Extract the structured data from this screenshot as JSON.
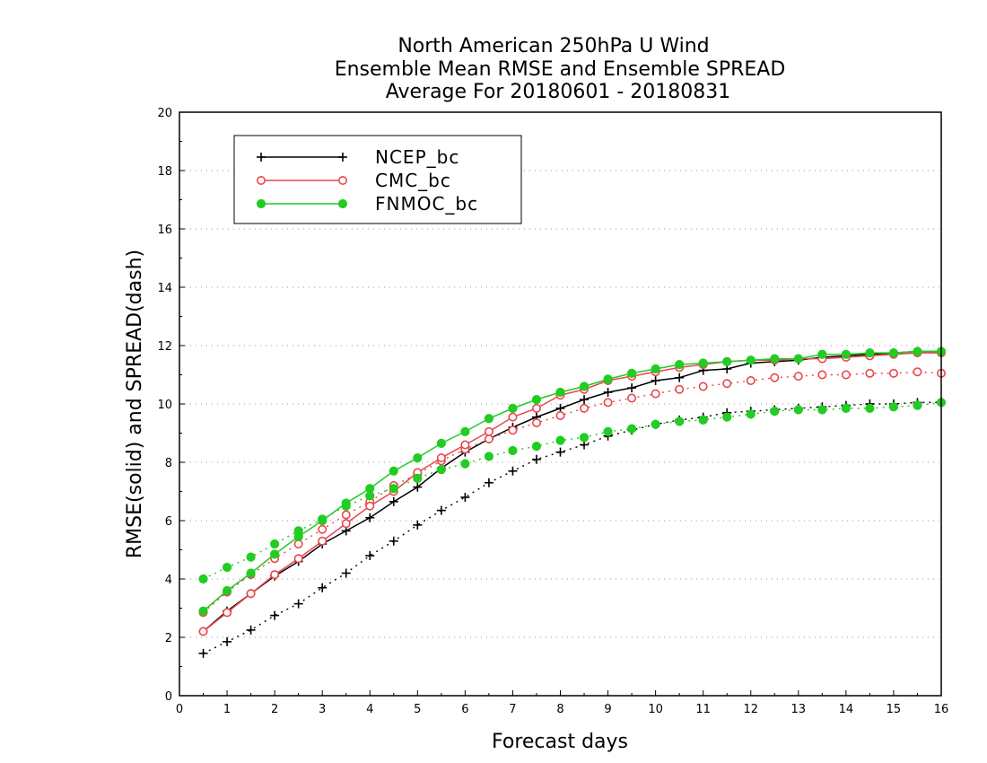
{
  "chart_data": {
    "type": "line",
    "title_lines": [
      "North American 250hPa U Wind",
      "Ensemble Mean RMSE and Ensemble SPREAD",
      "Average For 20180601 - 20180831"
    ],
    "xlabel": "Forecast days",
    "ylabel": "RMSE(solid) and SPREAD(dash)",
    "xlim": [
      0,
      16
    ],
    "ylim": [
      0,
      20
    ],
    "x_ticks": [
      "0",
      "1",
      "2",
      "3",
      "4",
      "5",
      "6",
      "7",
      "8",
      "9",
      "10",
      "11",
      "12",
      "13",
      "14",
      "15",
      "16"
    ],
    "y_ticks": [
      "0",
      "2",
      "4",
      "6",
      "8",
      "10",
      "12",
      "14",
      "16",
      "18",
      "20"
    ],
    "grid": "horizontal dotted",
    "legend_position": "top-left",
    "x": [
      0.5,
      1,
      1.5,
      2,
      2.5,
      3,
      3.5,
      4,
      4.5,
      5,
      5.5,
      6,
      6.5,
      7,
      7.5,
      8,
      8.5,
      9,
      9.5,
      10,
      10.5,
      11,
      11.5,
      12,
      12.5,
      13,
      13.5,
      14,
      14.5,
      15,
      15.5,
      16
    ],
    "series": [
      {
        "name": "NCEP_bc",
        "color": "#000000",
        "marker": "plus",
        "rmse": [
          2.2,
          2.9,
          3.5,
          4.1,
          4.6,
          5.2,
          5.65,
          6.1,
          6.65,
          7.15,
          7.8,
          8.35,
          8.8,
          9.2,
          9.55,
          9.85,
          10.15,
          10.4,
          10.55,
          10.8,
          10.9,
          11.15,
          11.2,
          11.4,
          11.45,
          11.5,
          11.6,
          11.65,
          11.7,
          11.75,
          11.8,
          11.8
        ],
        "spread": [
          1.45,
          1.85,
          2.25,
          2.75,
          3.15,
          3.7,
          4.2,
          4.8,
          5.3,
          5.85,
          6.35,
          6.8,
          7.3,
          7.7,
          8.1,
          8.35,
          8.6,
          8.9,
          9.1,
          9.3,
          9.45,
          9.55,
          9.7,
          9.75,
          9.8,
          9.85,
          9.9,
          9.95,
          10.0,
          10.0,
          10.05,
          10.05
        ]
      },
      {
        "name": "CMC_bc",
        "color": "#e8474c",
        "marker": "open-circle",
        "rmse": [
          2.2,
          2.85,
          3.5,
          4.15,
          4.7,
          5.3,
          5.9,
          6.5,
          7.0,
          7.65,
          8.15,
          8.6,
          9.05,
          9.55,
          9.85,
          10.3,
          10.5,
          10.8,
          10.95,
          11.1,
          11.25,
          11.35,
          11.45,
          11.5,
          11.5,
          11.55,
          11.55,
          11.6,
          11.65,
          11.7,
          11.75,
          11.75
        ],
        "spread": [
          2.85,
          3.55,
          4.15,
          4.7,
          5.2,
          5.7,
          6.2,
          6.65,
          7.2,
          7.6,
          8.05,
          8.45,
          8.8,
          9.1,
          9.35,
          9.6,
          9.85,
          10.05,
          10.2,
          10.35,
          10.5,
          10.6,
          10.7,
          10.8,
          10.9,
          10.95,
          11.0,
          11.0,
          11.05,
          11.05,
          11.1,
          11.05
        ]
      },
      {
        "name": "FNMOC_bc",
        "color": "#22cc22",
        "marker": "filled-circle",
        "rmse": [
          2.9,
          3.6,
          4.2,
          4.85,
          5.45,
          6.0,
          6.6,
          7.1,
          7.7,
          8.15,
          8.65,
          9.05,
          9.5,
          9.85,
          10.15,
          10.4,
          10.6,
          10.85,
          11.05,
          11.2,
          11.35,
          11.4,
          11.45,
          11.5,
          11.55,
          11.55,
          11.7,
          11.7,
          11.75,
          11.75,
          11.8,
          11.8
        ],
        "spread": [
          4.0,
          4.4,
          4.75,
          5.2,
          5.65,
          6.05,
          6.5,
          6.85,
          7.1,
          7.45,
          7.75,
          7.95,
          8.2,
          8.4,
          8.55,
          8.75,
          8.85,
          9.05,
          9.15,
          9.3,
          9.4,
          9.45,
          9.55,
          9.65,
          9.75,
          9.8,
          9.8,
          9.85,
          9.85,
          9.9,
          9.95,
          10.05
        ]
      }
    ]
  }
}
